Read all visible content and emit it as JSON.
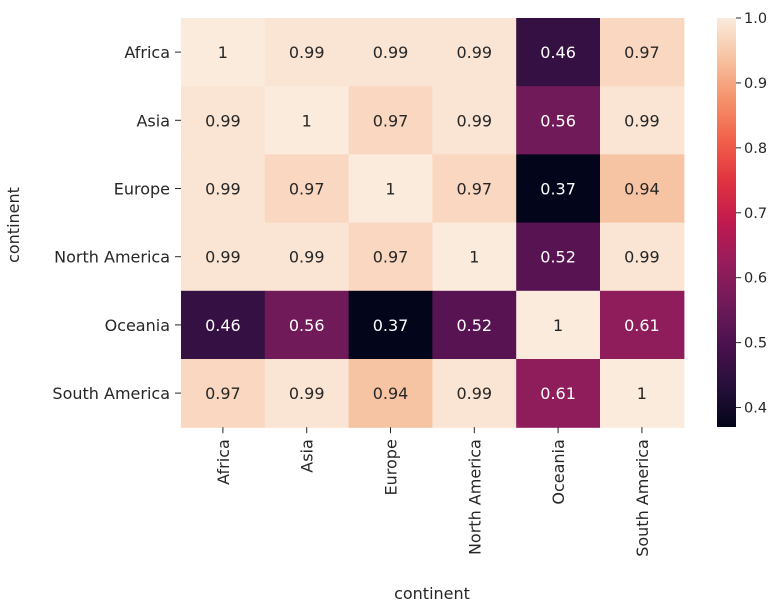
{
  "chart_data": {
    "type": "heatmap",
    "xlabel": "continent",
    "ylabel": "continent",
    "x_categories": [
      "Africa",
      "Asia",
      "Europe",
      "North America",
      "Oceania",
      "South America"
    ],
    "y_categories": [
      "Africa",
      "Asia",
      "Europe",
      "North America",
      "Oceania",
      "South America"
    ],
    "values": [
      [
        1,
        0.99,
        0.99,
        0.99,
        0.46,
        0.97
      ],
      [
        0.99,
        1,
        0.97,
        0.99,
        0.56,
        0.99
      ],
      [
        0.99,
        0.97,
        1,
        0.97,
        0.37,
        0.94
      ],
      [
        0.99,
        0.99,
        0.97,
        1,
        0.52,
        0.99
      ],
      [
        0.46,
        0.56,
        0.37,
        0.52,
        1,
        0.61
      ],
      [
        0.97,
        0.99,
        0.94,
        0.99,
        0.61,
        1
      ]
    ],
    "cell_labels": [
      [
        "1",
        "0.99",
        "0.99",
        "0.99",
        "0.46",
        "0.97"
      ],
      [
        "0.99",
        "1",
        "0.97",
        "0.99",
        "0.56",
        "0.99"
      ],
      [
        "0.99",
        "0.97",
        "1",
        "0.97",
        "0.37",
        "0.94"
      ],
      [
        "0.99",
        "0.99",
        "0.97",
        "1",
        "0.52",
        "0.99"
      ],
      [
        "0.46",
        "0.56",
        "0.37",
        "0.52",
        "1",
        "0.61"
      ],
      [
        "0.97",
        "0.99",
        "0.94",
        "0.99",
        "0.61",
        "1"
      ]
    ],
    "colorscale": "rocket",
    "vmin": 0.37,
    "vmax": 1.0,
    "colorbar_ticks": [
      {
        "value": 0.4,
        "label": "0.4"
      },
      {
        "value": 0.5,
        "label": "0.5"
      },
      {
        "value": 0.6,
        "label": "0.6"
      },
      {
        "value": 0.7,
        "label": "0.7"
      },
      {
        "value": 0.8,
        "label": "0.8"
      },
      {
        "value": 0.9,
        "label": "0.9"
      },
      {
        "value": 1.0,
        "label": "1.0"
      }
    ],
    "grid": false,
    "legend": "colorbar-right"
  }
}
